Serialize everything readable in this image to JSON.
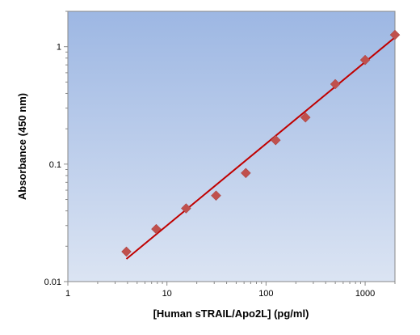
{
  "chart_data": {
    "type": "scatter",
    "title": "",
    "xlabel": "[Human sTRAIL/Apo2L] (pg/ml)",
    "ylabel": "Absorbance (450 nm)",
    "xscale": "log",
    "yscale": "log",
    "xlim": [
      1,
      2000
    ],
    "ylim": [
      0.01,
      2
    ],
    "x_ticks": [
      1,
      10,
      100,
      1000
    ],
    "x_tick_labels": [
      "1",
      "10",
      "100",
      "1000"
    ],
    "y_ticks": [
      0.01,
      0.1,
      1
    ],
    "y_tick_labels": [
      "0.01",
      "0.1",
      "1"
    ],
    "grid": false,
    "legend": "none",
    "background": "vertical gradient, light blue (#dbe4f3) at bottom to medium blue (#9db7e3) at top",
    "series": [
      {
        "marker": "diamond",
        "color": "#c0504d",
        "x": [
          3.9,
          7.8,
          15.6,
          31.3,
          62.5,
          125,
          250,
          500,
          1000,
          2000
        ],
        "y": [
          0.018,
          0.028,
          0.042,
          0.054,
          0.084,
          0.16,
          0.25,
          0.48,
          0.77,
          1.26
        ]
      }
    ],
    "fit_line": {
      "color": "#c00000",
      "x": [
        3.9,
        2000
      ],
      "y": [
        0.0156,
        1.2
      ]
    }
  }
}
